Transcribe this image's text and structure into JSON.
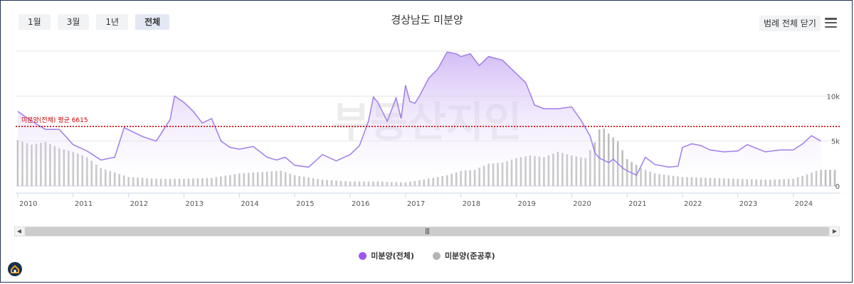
{
  "header": {
    "title": "경상남도 미분양",
    "range_buttons": [
      "1월",
      "3월",
      "1년",
      "전체"
    ],
    "active_range": "전체",
    "legend_toggle_label": "범례 전체 닫기"
  },
  "watermark": "부동산지인",
  "colors": {
    "total": "#9b59f0",
    "completed": "#b5b5b5",
    "avg_line": "#cc0000"
  },
  "legend": [
    {
      "label": "미분양(전체)",
      "color": "#9b59f0"
    },
    {
      "label": "미분양(준공후)",
      "color": "#b5b5b5"
    }
  ],
  "chart_data": {
    "type": "area",
    "title": "경상남도 미분양",
    "x_tick_labels": [
      "2010",
      "2011",
      "2012",
      "2013",
      "2014",
      "2015",
      "2016",
      "2017",
      "2018",
      "2019",
      "2020",
      "2021",
      "2022",
      "2023",
      "2024"
    ],
    "y_tick_labels": [
      "0",
      "5k",
      "10k"
    ],
    "ylim": [
      0,
      15000
    ],
    "grid": true,
    "legend_position": "bottom",
    "avg_label": "미분양(전체) 평균 6615",
    "avg_value": 6615,
    "series": [
      {
        "name": "미분양(전체)",
        "type": "area",
        "x": [
          2010.0,
          2010.25,
          2010.5,
          2010.75,
          2011.0,
          2011.25,
          2011.5,
          2011.75,
          2011.92,
          2012.25,
          2012.5,
          2012.75,
          2012.83,
          2013.0,
          2013.17,
          2013.33,
          2013.5,
          2013.67,
          2013.83,
          2014.0,
          2014.25,
          2014.5,
          2014.67,
          2014.83,
          2015.0,
          2015.25,
          2015.5,
          2015.75,
          2016.0,
          2016.17,
          2016.33,
          2016.42,
          2016.5,
          2016.67,
          2016.83,
          2016.92,
          2017.0,
          2017.08,
          2017.17,
          2017.25,
          2017.42,
          2017.58,
          2017.75,
          2017.92,
          2018.0,
          2018.17,
          2018.33,
          2018.5,
          2018.75,
          2019.0,
          2019.17,
          2019.33,
          2019.5,
          2019.75,
          2020.0,
          2020.17,
          2020.33,
          2020.42,
          2020.5,
          2020.67,
          2020.75,
          2020.92,
          2021.0,
          2021.17,
          2021.33,
          2021.5,
          2021.75,
          2021.92,
          2022.0,
          2022.17,
          2022.33,
          2022.5,
          2022.75,
          2023.0,
          2023.17,
          2023.33,
          2023.5,
          2023.75,
          2024.0,
          2024.17,
          2024.33,
          2024.5
        ],
        "values": [
          8300,
          7200,
          6300,
          6300,
          4600,
          3900,
          2900,
          3200,
          6500,
          5500,
          5000,
          7400,
          10000,
          9300,
          8300,
          7000,
          7500,
          5000,
          4300,
          4100,
          4400,
          3200,
          2900,
          3200,
          2300,
          2100,
          3500,
          2800,
          3500,
          4500,
          7200,
          9900,
          9300,
          7200,
          9800,
          7500,
          11200,
          9400,
          9200,
          10000,
          12000,
          13000,
          14900,
          14700,
          14400,
          14700,
          13400,
          14400,
          14000,
          12500,
          11500,
          9000,
          8600,
          8600,
          8800,
          7300,
          5600,
          3700,
          3100,
          2600,
          3000,
          2000,
          1700,
          1200,
          3200,
          2400,
          2100,
          2200,
          4300,
          4700,
          4500,
          4000,
          3800,
          3900,
          4600,
          4200,
          3800,
          4000,
          4000,
          4700,
          5600,
          5000
        ]
      },
      {
        "name": "미분양(준공후)",
        "type": "bar",
        "x": [
          2010.0,
          2010.25,
          2010.5,
          2010.75,
          2011.0,
          2011.25,
          2011.5,
          2011.75,
          2012.0,
          2012.5,
          2013.0,
          2013.5,
          2014.0,
          2014.5,
          2014.75,
          2015.0,
          2015.5,
          2016.0,
          2016.5,
          2017.0,
          2017.5,
          2017.75,
          2018.0,
          2018.25,
          2018.5,
          2018.75,
          2019.0,
          2019.25,
          2019.5,
          2019.75,
          2020.0,
          2020.25,
          2020.42,
          2020.5,
          2020.58,
          2020.67,
          2020.75,
          2020.83,
          2021.0,
          2021.25,
          2021.5,
          2021.75,
          2022.0,
          2022.5,
          2023.0,
          2023.5,
          2024.0,
          2024.25,
          2024.42,
          2024.5
        ],
        "values": [
          5100,
          4600,
          4900,
          4200,
          3800,
          3200,
          2000,
          1500,
          1000,
          800,
          800,
          900,
          1400,
          1600,
          1700,
          1200,
          700,
          500,
          500,
          400,
          900,
          1200,
          1700,
          1800,
          2500,
          2600,
          3100,
          3400,
          3200,
          3800,
          3400,
          3100,
          4900,
          6300,
          6400,
          5800,
          5400,
          5000,
          3000,
          2000,
          1400,
          1200,
          1000,
          900,
          800,
          700,
          800,
          1300,
          1700,
          1800
        ]
      }
    ]
  }
}
